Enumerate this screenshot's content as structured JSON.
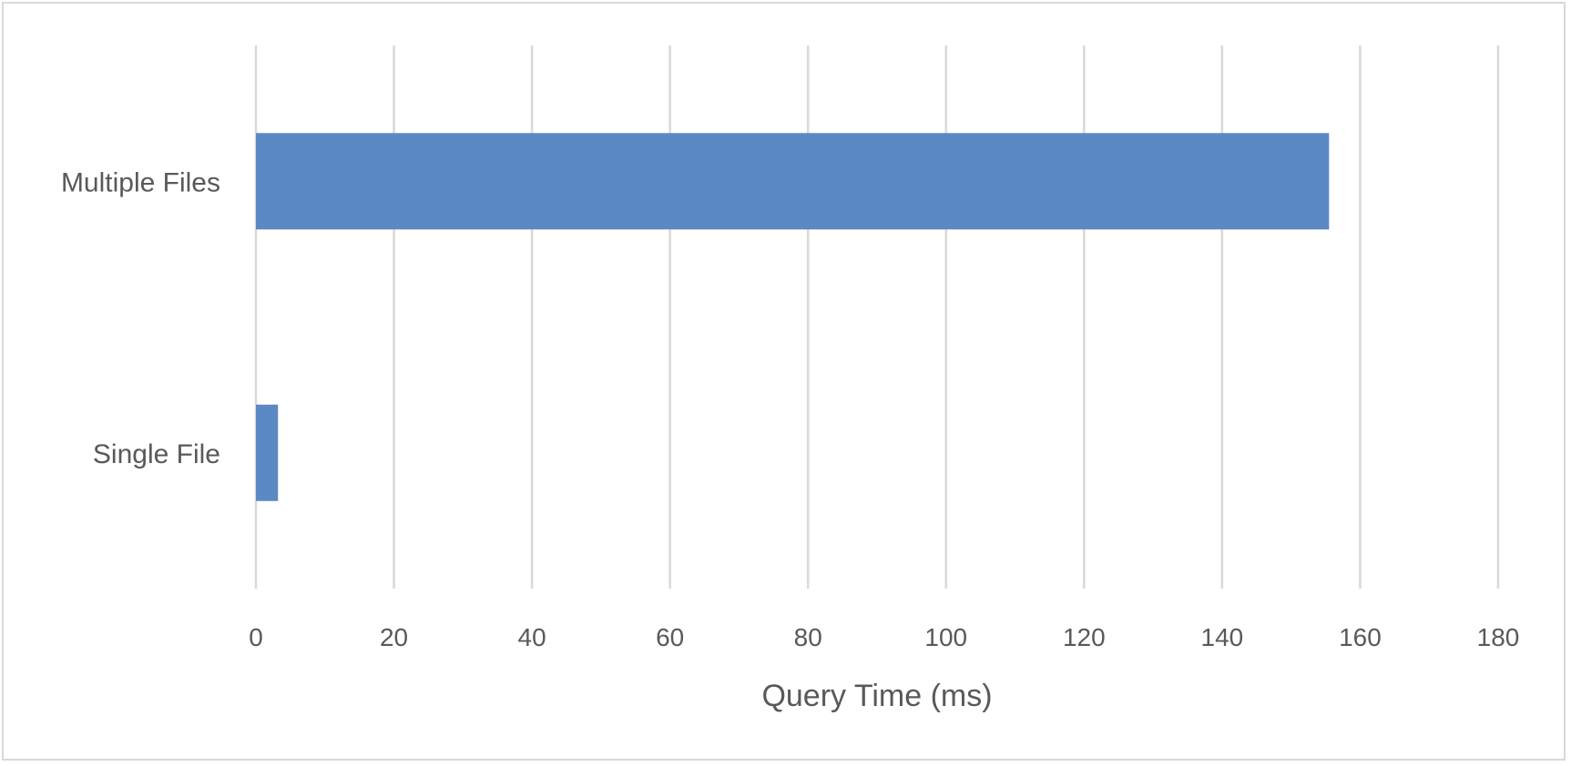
{
  "chart_data": {
    "type": "bar",
    "orientation": "horizontal",
    "categories": [
      "Multiple Files",
      "Single File"
    ],
    "values": [
      155.5,
      3.2
    ],
    "xlabel": "Query Time (ms)",
    "ylabel": "",
    "xlim": [
      0,
      180
    ],
    "xticks": [
      "0",
      "20",
      "40",
      "60",
      "80",
      "100",
      "120",
      "140",
      "160",
      "180"
    ],
    "grid": "vertical",
    "legend": "none",
    "bar_color": "#5b89c4",
    "grid_color": "#d9d9d9"
  }
}
